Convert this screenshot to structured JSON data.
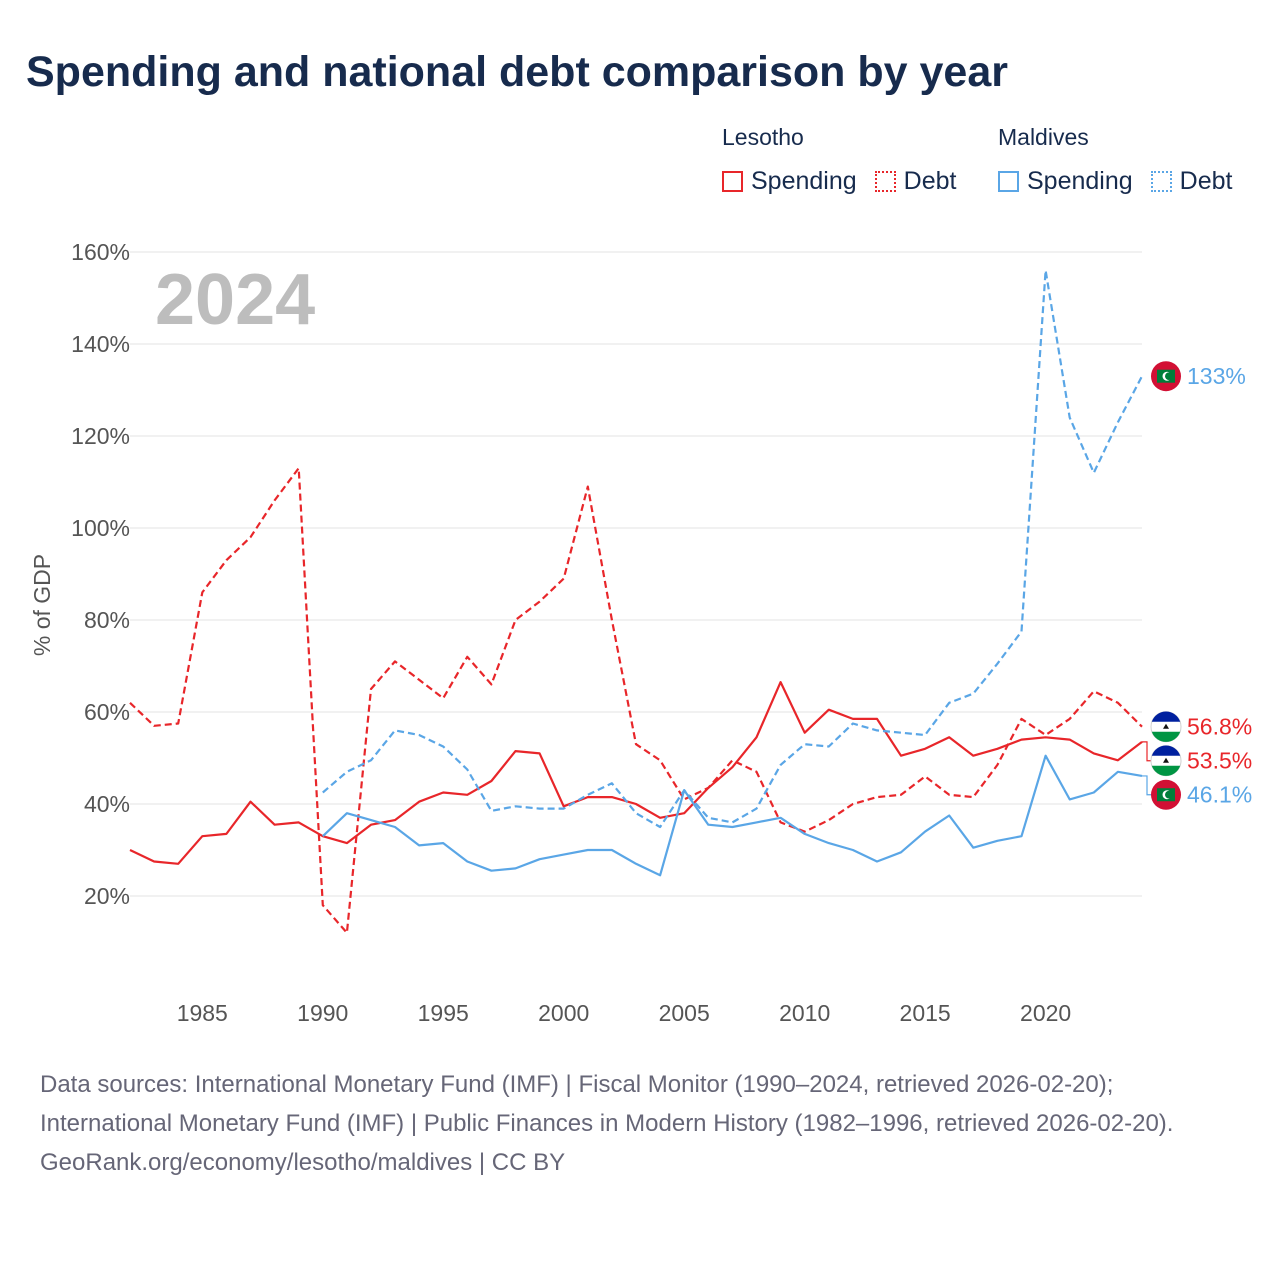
{
  "title": "Spending and national debt comparison by year",
  "legend": {
    "groups": [
      {
        "name": "Lesotho",
        "color": "#e8262a",
        "spending_label": "Spending",
        "debt_label": "Debt"
      },
      {
        "name": "Maldives",
        "color": "#5aa6e6",
        "spending_label": "Spending",
        "debt_label": "Debt"
      }
    ]
  },
  "footer": {
    "sources": "Data sources: International Monetary Fund (IMF) | Fiscal Monitor (1990–2024, retrieved 2026-02-20); International Monetary Fund (IMF) | Public Finances in Modern History (1982–1996, retrieved 2026-02-20).",
    "credit": "GeoRank.org/economy/lesotho/maldives | CC BY"
  },
  "chart_data": {
    "type": "line",
    "title": "Spending and national debt comparison by year",
    "year_watermark": "2024",
    "ylabel": "% of GDP",
    "xlabel": "",
    "xlim": [
      1982,
      2024
    ],
    "ylim": [
      0,
      165
    ],
    "x_ticks": [
      "1985",
      "1990",
      "1995",
      "2000",
      "2005",
      "2010",
      "2015",
      "2020"
    ],
    "y_ticks": [
      "20%",
      "40%",
      "60%",
      "80%",
      "100%",
      "120%",
      "140%",
      "160%"
    ],
    "grid": true,
    "series": [
      {
        "name": "Lesotho Debt",
        "country": "Lesotho",
        "kind": "debt",
        "color": "#e8262a",
        "dash": true,
        "end_label": "56.8%",
        "points": [
          [
            1982,
            62
          ],
          [
            1983,
            57
          ],
          [
            1984,
            57.5
          ],
          [
            1985,
            86
          ],
          [
            1986,
            93
          ],
          [
            1987,
            98
          ],
          [
            1988,
            106
          ],
          [
            1989,
            113
          ],
          [
            1990,
            18
          ],
          [
            1991,
            12
          ],
          [
            1992,
            65
          ],
          [
            1993,
            71
          ],
          [
            1994,
            67
          ],
          [
            1995,
            63
          ],
          [
            1996,
            72
          ],
          [
            1997,
            66
          ],
          [
            1998,
            80
          ],
          [
            1999,
            84
          ],
          [
            2000,
            89
          ],
          [
            2001,
            109
          ],
          [
            2002,
            80
          ],
          [
            2003,
            53
          ],
          [
            2004,
            49.5
          ],
          [
            2005,
            41
          ],
          [
            2006,
            43.5
          ],
          [
            2007,
            49.5
          ],
          [
            2008,
            47
          ],
          [
            2009,
            36
          ],
          [
            2010,
            34
          ],
          [
            2011,
            36.5
          ],
          [
            2012,
            40
          ],
          [
            2013,
            41.5
          ],
          [
            2014,
            42
          ],
          [
            2015,
            46
          ],
          [
            2016,
            42
          ],
          [
            2017,
            41.5
          ],
          [
            2018,
            48.5
          ],
          [
            2019,
            58.5
          ],
          [
            2020,
            55
          ],
          [
            2021,
            58.5
          ],
          [
            2022,
            64.5
          ],
          [
            2023,
            62
          ],
          [
            2024,
            56.8
          ]
        ]
      },
      {
        "name": "Lesotho Spending",
        "country": "Lesotho",
        "kind": "spending",
        "color": "#e8262a",
        "dash": false,
        "end_label": "53.5%",
        "points": [
          [
            1982,
            30
          ],
          [
            1983,
            27.5
          ],
          [
            1984,
            27
          ],
          [
            1985,
            33
          ],
          [
            1986,
            33.5
          ],
          [
            1987,
            40.5
          ],
          [
            1988,
            35.5
          ],
          [
            1989,
            36
          ],
          [
            1990,
            33
          ],
          [
            1991,
            31.5
          ],
          [
            1992,
            35.5
          ],
          [
            1993,
            36.5
          ],
          [
            1994,
            40.5
          ],
          [
            1995,
            42.5
          ],
          [
            1996,
            42
          ],
          [
            1997,
            45
          ],
          [
            1998,
            51.5
          ],
          [
            1999,
            51
          ],
          [
            2000,
            39.5
          ],
          [
            2001,
            41.5
          ],
          [
            2002,
            41.5
          ],
          [
            2003,
            40
          ],
          [
            2004,
            37
          ],
          [
            2005,
            38
          ],
          [
            2006,
            43.5
          ],
          [
            2007,
            48
          ],
          [
            2008,
            54.5
          ],
          [
            2009,
            66.5
          ],
          [
            2010,
            55.5
          ],
          [
            2011,
            60.5
          ],
          [
            2012,
            58.5
          ],
          [
            2013,
            58.5
          ],
          [
            2014,
            50.5
          ],
          [
            2015,
            52
          ],
          [
            2016,
            54.5
          ],
          [
            2017,
            50.5
          ],
          [
            2018,
            52
          ],
          [
            2019,
            54
          ],
          [
            2020,
            54.5
          ],
          [
            2021,
            54
          ],
          [
            2022,
            51
          ],
          [
            2023,
            49.5
          ],
          [
            2024,
            53.5
          ]
        ]
      },
      {
        "name": "Maldives Debt",
        "country": "Maldives",
        "kind": "debt",
        "color": "#5aa6e6",
        "dash": true,
        "end_label": "133%",
        "points": [
          [
            1990,
            42.5
          ],
          [
            1991,
            47
          ],
          [
            1992,
            49.5
          ],
          [
            1993,
            56
          ],
          [
            1994,
            55
          ],
          [
            1995,
            52.5
          ],
          [
            1996,
            47.5
          ],
          [
            1997,
            38.5
          ],
          [
            1998,
            39.5
          ],
          [
            1999,
            39
          ],
          [
            2000,
            39
          ],
          [
            2001,
            42
          ],
          [
            2002,
            44.5
          ],
          [
            2003,
            38
          ],
          [
            2004,
            35
          ],
          [
            2005,
            43
          ],
          [
            2006,
            37
          ],
          [
            2007,
            36
          ],
          [
            2008,
            39
          ],
          [
            2009,
            48.5
          ],
          [
            2010,
            53
          ],
          [
            2011,
            52.5
          ],
          [
            2012,
            57.5
          ],
          [
            2013,
            56
          ],
          [
            2014,
            55.5
          ],
          [
            2015,
            55
          ],
          [
            2016,
            62
          ],
          [
            2017,
            64
          ],
          [
            2018,
            70.5
          ],
          [
            2019,
            77.5
          ],
          [
            2020,
            156
          ],
          [
            2021,
            124
          ],
          [
            2022,
            112
          ],
          [
            2023,
            123
          ],
          [
            2024,
            133
          ]
        ]
      },
      {
        "name": "Maldives Spending",
        "country": "Maldives",
        "kind": "spending",
        "color": "#5aa6e6",
        "dash": false,
        "end_label": "46.1%",
        "points": [
          [
            1990,
            33
          ],
          [
            1991,
            38
          ],
          [
            1992,
            36.5
          ],
          [
            1993,
            35
          ],
          [
            1994,
            31
          ],
          [
            1995,
            31.5
          ],
          [
            1996,
            27.5
          ],
          [
            1997,
            25.5
          ],
          [
            1998,
            26
          ],
          [
            1999,
            28
          ],
          [
            2000,
            29
          ],
          [
            2001,
            30
          ],
          [
            2002,
            30
          ],
          [
            2003,
            27
          ],
          [
            2004,
            24.5
          ],
          [
            2005,
            43
          ],
          [
            2006,
            35.5
          ],
          [
            2007,
            35
          ],
          [
            2008,
            36
          ],
          [
            2009,
            37
          ],
          [
            2010,
            33.5
          ],
          [
            2011,
            31.5
          ],
          [
            2012,
            30
          ],
          [
            2013,
            27.5
          ],
          [
            2014,
            29.5
          ],
          [
            2015,
            34
          ],
          [
            2016,
            37.5
          ],
          [
            2017,
            30.5
          ],
          [
            2018,
            32
          ],
          [
            2019,
            33
          ],
          [
            2020,
            50.5
          ],
          [
            2021,
            41
          ],
          [
            2022,
            42.5
          ],
          [
            2023,
            47
          ],
          [
            2024,
            46.1
          ]
        ]
      }
    ]
  }
}
